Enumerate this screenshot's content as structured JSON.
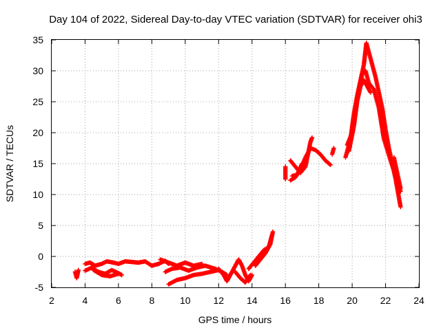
{
  "chart_data": {
    "type": "scatter",
    "title": "Day 104 of 2022, Sidereal Day-to-day VTEC variation (SDTVAR) for receiver ohi3",
    "xlabel": "GPS time / hours",
    "ylabel": "SDTVAR / TECUs",
    "xlim": [
      2,
      24
    ],
    "ylim": [
      -5,
      35
    ],
    "xticks": [
      2,
      4,
      6,
      8,
      10,
      12,
      14,
      16,
      18,
      20,
      22,
      24
    ],
    "yticks": [
      -5,
      0,
      5,
      10,
      15,
      20,
      25,
      30,
      35
    ],
    "grid": true,
    "marker": "+",
    "series": [
      {
        "name": "SDTVAR",
        "color": "#ff0000",
        "segments": [
          [
            [
              3.4,
              -2.5
            ],
            [
              3.5,
              -3.5
            ],
            [
              3.6,
              -2.2
            ]
          ],
          [
            [
              4.0,
              -1.2
            ],
            [
              4.3,
              -1.0
            ],
            [
              4.6,
              -1.5
            ],
            [
              5.0,
              -1.2
            ],
            [
              5.3,
              -0.8
            ],
            [
              5.7,
              -1.0
            ],
            [
              6.0,
              -1.2
            ],
            [
              6.4,
              -0.8
            ],
            [
              6.8,
              -0.9
            ],
            [
              7.2,
              -1.0
            ],
            [
              7.6,
              -0.8
            ],
            [
              8.0,
              -1.5
            ],
            [
              8.4,
              -1.2
            ],
            [
              8.8,
              -0.7
            ],
            [
              9.0,
              -1.2
            ]
          ],
          [
            [
              4.0,
              -2.3
            ],
            [
              4.4,
              -1.8
            ],
            [
              4.8,
              -2.5
            ],
            [
              5.2,
              -2.8
            ],
            [
              5.6,
              -2.2
            ],
            [
              6.0,
              -2.7
            ],
            [
              6.2,
              -3.0
            ]
          ],
          [
            [
              4.5,
              -2.2
            ],
            [
              5.0,
              -3.0
            ],
            [
              5.5,
              -3.2
            ],
            [
              6.0,
              -2.8
            ]
          ],
          [
            [
              9.0,
              -4.5
            ],
            [
              9.5,
              -3.8
            ],
            [
              10.0,
              -3.5
            ],
            [
              10.5,
              -3.0
            ],
            [
              11.0,
              -2.8
            ],
            [
              11.5,
              -2.5
            ],
            [
              12.0,
              -2.2
            ]
          ],
          [
            [
              8.8,
              -2.5
            ],
            [
              9.2,
              -2.0
            ],
            [
              9.7,
              -1.8
            ],
            [
              10.2,
              -2.3
            ],
            [
              10.7,
              -1.8
            ],
            [
              11.2,
              -1.5
            ],
            [
              11.8,
              -2.0
            ],
            [
              12.2,
              -2.5
            ],
            [
              12.5,
              -3.0
            ]
          ],
          [
            [
              8.5,
              -0.5
            ],
            [
              9.0,
              -1.0
            ],
            [
              9.5,
              -1.5
            ],
            [
              10.0,
              -1.0
            ],
            [
              10.5,
              -1.5
            ],
            [
              11.0,
              -1.2
            ]
          ],
          [
            [
              12.0,
              -2.0
            ],
            [
              12.3,
              -3.0
            ],
            [
              12.5,
              -4.0
            ],
            [
              12.8,
              -2.5
            ],
            [
              13.0,
              -1.5
            ],
            [
              13.2,
              -0.5
            ],
            [
              13.4,
              -1.5
            ],
            [
              13.6,
              -3.0
            ],
            [
              13.8,
              -4.0
            ],
            [
              14.0,
              -3.0
            ]
          ],
          [
            [
              13.0,
              -2.5
            ],
            [
              13.3,
              -3.5
            ],
            [
              13.6,
              -4.2
            ],
            [
              13.9,
              -3.0
            ]
          ],
          [
            [
              13.8,
              -2.0
            ],
            [
              14.1,
              -1.0
            ],
            [
              14.4,
              0.0
            ],
            [
              14.7,
              1.0
            ],
            [
              15.0,
              1.5
            ],
            [
              15.2,
              3.5
            ]
          ],
          [
            [
              14.2,
              -1.5
            ],
            [
              14.5,
              -0.5
            ],
            [
              14.8,
              0.5
            ],
            [
              15.1,
              2.0
            ],
            [
              15.25,
              4.0
            ]
          ],
          [
            [
              16.0,
              12.5
            ],
            [
              16.0,
              14.5
            ]
          ],
          [
            [
              16.3,
              12.3
            ],
            [
              16.6,
              12.8
            ],
            [
              16.9,
              14.0
            ],
            [
              17.2,
              16.0
            ],
            [
              17.5,
              17.5
            ],
            [
              17.8,
              17.2
            ],
            [
              18.1,
              16.5
            ],
            [
              18.4,
              15.5
            ],
            [
              18.7,
              14.8
            ]
          ],
          [
            [
              16.3,
              15.5
            ],
            [
              16.6,
              14.5
            ],
            [
              16.9,
              13.5
            ],
            [
              17.2,
              14.5
            ],
            [
              17.5,
              18.5
            ],
            [
              17.6,
              19.2
            ]
          ],
          [
            [
              16.4,
              13.0
            ],
            [
              16.7,
              13.2
            ],
            [
              17.0,
              15.0
            ]
          ],
          [
            [
              18.8,
              16.5
            ],
            [
              18.9,
              17.5
            ]
          ],
          [
            [
              19.6,
              16.0
            ],
            [
              19.9,
              19.0
            ],
            [
              20.1,
              23.0
            ],
            [
              20.3,
              26.0
            ],
            [
              20.5,
              28.5
            ],
            [
              20.7,
              31.0
            ],
            [
              20.85,
              34.5
            ],
            [
              21.0,
              33.0
            ],
            [
              21.2,
              31.0
            ],
            [
              21.4,
              29.0
            ],
            [
              21.6,
              26.5
            ],
            [
              21.8,
              24.0
            ],
            [
              22.0,
              20.5
            ],
            [
              22.2,
              17.5
            ],
            [
              22.4,
              15.0
            ],
            [
              22.6,
              12.5
            ],
            [
              22.9,
              8.0
            ]
          ],
          [
            [
              19.7,
              18.0
            ],
            [
              20.0,
              20.0
            ],
            [
              20.2,
              24.0
            ],
            [
              20.4,
              27.0
            ],
            [
              20.6,
              29.5
            ],
            [
              20.8,
              30.0
            ],
            [
              21.0,
              28.0
            ],
            [
              21.3,
              27.0
            ],
            [
              21.6,
              24.0
            ],
            [
              21.9,
              19.0
            ],
            [
              22.3,
              15.5
            ],
            [
              22.6,
              13.0
            ],
            [
              22.9,
              10.5
            ]
          ],
          [
            [
              19.8,
              17.0
            ],
            [
              20.1,
              21.0
            ],
            [
              20.3,
              25.0
            ],
            [
              20.5,
              27.5
            ],
            [
              20.7,
              28.5
            ],
            [
              20.9,
              27.5
            ],
            [
              21.1,
              26.5
            ]
          ],
          [
            [
              22.5,
              16.0
            ],
            [
              22.7,
              13.5
            ],
            [
              22.9,
              11.0
            ]
          ]
        ]
      }
    ]
  }
}
